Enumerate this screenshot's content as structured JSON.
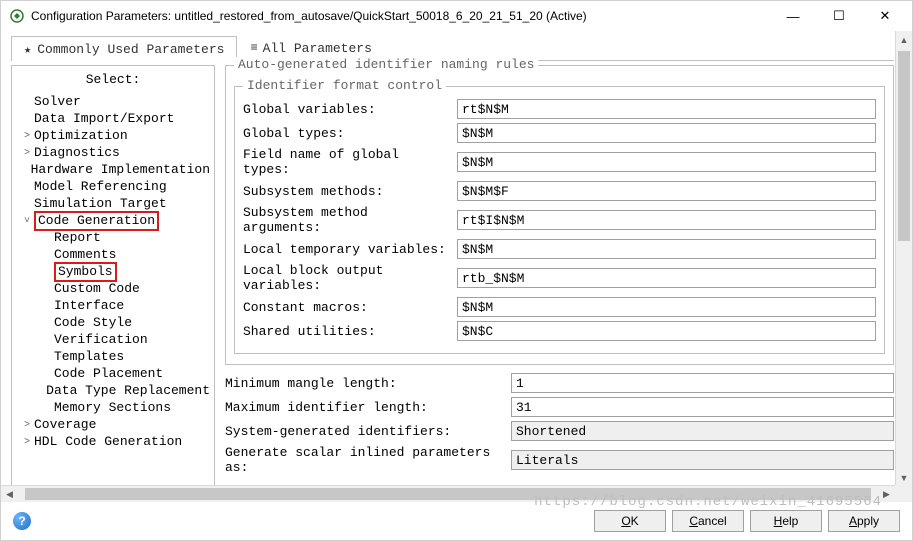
{
  "window": {
    "title": "Configuration Parameters: untitled_restored_from_autosave/QuickStart_50018_6_20_21_51_20 (Active)"
  },
  "tabs": {
    "commonly_used": "Commonly Used Parameters",
    "all_params": "All Parameters",
    "active_index": 0
  },
  "tree": {
    "header": "Select:",
    "items": [
      {
        "label": "Solver",
        "depth": 0,
        "expandable": false,
        "highlight": false
      },
      {
        "label": "Data Import/Export",
        "depth": 0,
        "expandable": false,
        "highlight": false
      },
      {
        "label": "Optimization",
        "depth": 0,
        "expandable": true,
        "expanded": false,
        "highlight": false
      },
      {
        "label": "Diagnostics",
        "depth": 0,
        "expandable": true,
        "expanded": false,
        "highlight": false
      },
      {
        "label": "Hardware Implementation",
        "depth": 0,
        "expandable": false,
        "highlight": false
      },
      {
        "label": "Model Referencing",
        "depth": 0,
        "expandable": false,
        "highlight": false
      },
      {
        "label": "Simulation Target",
        "depth": 0,
        "expandable": false,
        "highlight": false
      },
      {
        "label": "Code Generation",
        "depth": 0,
        "expandable": true,
        "expanded": true,
        "highlight": true
      },
      {
        "label": "Report",
        "depth": 1,
        "expandable": false,
        "highlight": false
      },
      {
        "label": "Comments",
        "depth": 1,
        "expandable": false,
        "highlight": false
      },
      {
        "label": "Symbols",
        "depth": 1,
        "expandable": false,
        "highlight": true
      },
      {
        "label": "Custom Code",
        "depth": 1,
        "expandable": false,
        "highlight": false
      },
      {
        "label": "Interface",
        "depth": 1,
        "expandable": false,
        "highlight": false
      },
      {
        "label": "Code Style",
        "depth": 1,
        "expandable": false,
        "highlight": false
      },
      {
        "label": "Verification",
        "depth": 1,
        "expandable": false,
        "highlight": false
      },
      {
        "label": "Templates",
        "depth": 1,
        "expandable": false,
        "highlight": false
      },
      {
        "label": "Code Placement",
        "depth": 1,
        "expandable": false,
        "highlight": false
      },
      {
        "label": "Data Type Replacement",
        "depth": 1,
        "expandable": false,
        "highlight": false
      },
      {
        "label": "Memory Sections",
        "depth": 1,
        "expandable": false,
        "highlight": false
      },
      {
        "label": "Coverage",
        "depth": 0,
        "expandable": true,
        "expanded": false,
        "highlight": false
      },
      {
        "label": "HDL Code Generation",
        "depth": 0,
        "expandable": true,
        "expanded": false,
        "highlight": false
      }
    ]
  },
  "form": {
    "group_outer_title": "Auto-generated identifier naming rules",
    "group_inner_title": "Identifier format control",
    "fields": [
      {
        "label": "Global variables:",
        "value": "rt$N$M"
      },
      {
        "label": "Global types:",
        "value": "$N$M"
      },
      {
        "label": "Field name of global types:",
        "value": "$N$M"
      },
      {
        "label": "Subsystem methods:",
        "value": "$N$M$F"
      },
      {
        "label": "Subsystem method arguments:",
        "value": "rt$I$N$M"
      },
      {
        "label": "Local temporary variables:",
        "value": "$N$M"
      },
      {
        "label": "Local block output variables:",
        "value": "rtb_$N$M"
      },
      {
        "label": "Constant macros:",
        "value": "$N$M"
      },
      {
        "label": "Shared utilities:",
        "value": "$N$C"
      }
    ],
    "lower": [
      {
        "label": "Minimum mangle length:",
        "value": "1",
        "readonly": false
      },
      {
        "label": "Maximum identifier length:",
        "value": "31",
        "readonly": false
      },
      {
        "label": "System-generated identifiers:",
        "value": "Shortened",
        "readonly": true
      },
      {
        "label": "Generate scalar inlined parameters as:",
        "value": "Literals",
        "readonly": true
      }
    ]
  },
  "footer": {
    "ok": "OK",
    "cancel": "Cancel",
    "help": "Help",
    "apply": "Apply"
  },
  "colors": {
    "border": "#bfbfbf",
    "highlight": "#d81b1b",
    "readonly_bg": "#efefef",
    "scroll_track": "#f0f0f0",
    "scroll_thumb": "#c7c7c7"
  }
}
